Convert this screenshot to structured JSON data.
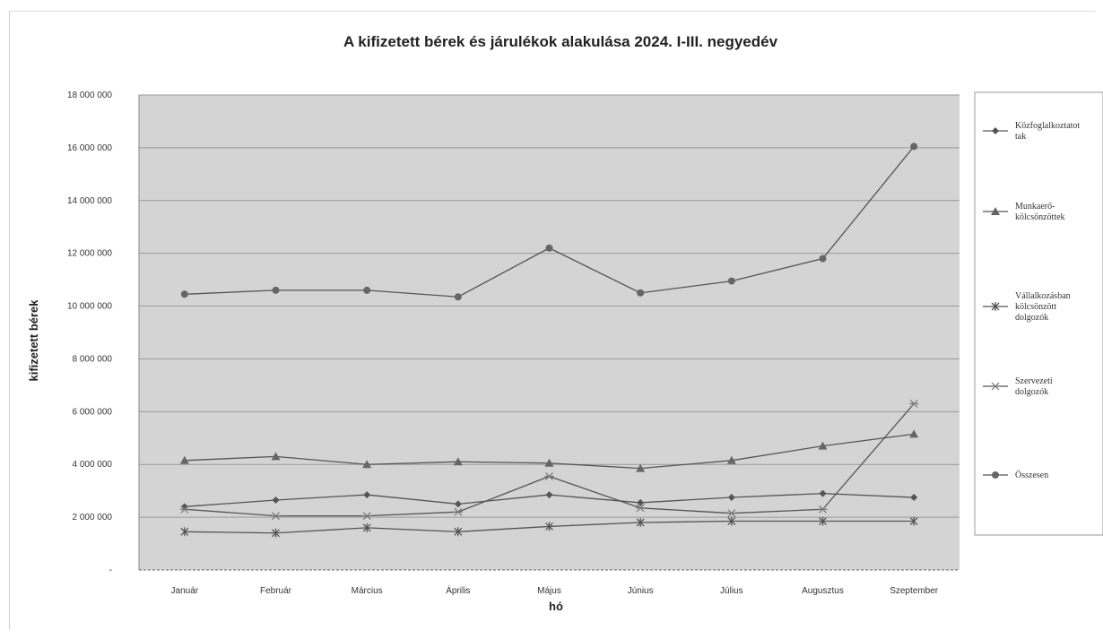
{
  "chart_data": {
    "type": "line",
    "title": "A kifizetett bérek és járulékok alakulása 2024. I-III. negyedév",
    "xlabel": "hó",
    "ylabel": "kifizetett bérek",
    "categories": [
      "Január",
      "Február",
      "Március",
      "Április",
      "Május",
      "Június",
      "Július",
      "Augusztus",
      "Szeptember"
    ],
    "ylim": [
      0,
      18000000
    ],
    "yticks": [
      "-",
      "2 000 000",
      "4 000 000",
      "6 000 000",
      "8 000 000",
      "10 000 000",
      "12 000 000",
      "14 000 000",
      "16 000 000",
      "18 000 000"
    ],
    "grid": true,
    "legend_position": "right",
    "series": [
      {
        "name": "Közfoglalkoztatottak",
        "legend_lines": [
          "Közfoglalkoztatot",
          "tak"
        ],
        "marker": "diamond",
        "values": [
          2400000,
          2650000,
          2850000,
          2500000,
          2850000,
          2550000,
          2750000,
          2900000,
          2750000
        ]
      },
      {
        "name": "Munkaerő-kölcsönzöttek",
        "legend_lines": [
          "Munkaerő-",
          "kölcsönzöttek"
        ],
        "marker": "triangle",
        "values": [
          4150000,
          4300000,
          4000000,
          4100000,
          4050000,
          3850000,
          4150000,
          4700000,
          5150000
        ]
      },
      {
        "name": "Vállalkozásban kölcsönzött dolgozók",
        "legend_lines": [
          "Vállalkozásban",
          "kölcsönzött",
          "dolgozók"
        ],
        "marker": "x-bar",
        "values": [
          1450000,
          1400000,
          1600000,
          1450000,
          1650000,
          1800000,
          1850000,
          1850000,
          1850000
        ]
      },
      {
        "name": "Szervezeti dolgozók",
        "legend_lines": [
          "Szervezeti",
          "dolgozók"
        ],
        "marker": "star",
        "values": [
          2300000,
          2050000,
          2050000,
          2200000,
          3550000,
          2350000,
          2150000,
          2300000,
          6300000
        ]
      },
      {
        "name": "Összesen",
        "legend_lines": [
          "Összesen"
        ],
        "marker": "circle",
        "values": [
          10450000,
          10600000,
          10600000,
          10350000,
          12200000,
          10500000,
          10950000,
          11800000,
          16050000
        ]
      }
    ]
  },
  "colors": {
    "plot_background": "#d4d4d4",
    "series_line": "#555555",
    "gridline": "#9a9a9a"
  }
}
